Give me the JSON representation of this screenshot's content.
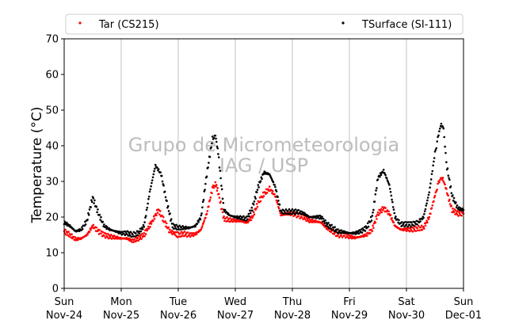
{
  "chart_data": {
    "type": "scatter",
    "title": "",
    "xlabel": "",
    "ylabel": "Temperature (°C)",
    "ylim": [
      0,
      70
    ],
    "yticks": [
      0,
      10,
      20,
      30,
      40,
      50,
      60,
      70
    ],
    "x_unit": "day",
    "xlim": [
      0,
      7
    ],
    "xticks": [
      {
        "day": "Sun",
        "date": "Nov-24"
      },
      {
        "day": "Mon",
        "date": "Nov-25"
      },
      {
        "day": "Tue",
        "date": "Nov-26"
      },
      {
        "day": "Wed",
        "date": "Nov-27"
      },
      {
        "day": "Thu",
        "date": "Nov-28"
      },
      {
        "day": "Fri",
        "date": "Nov-29"
      },
      {
        "day": "Sat",
        "date": "Nov-30"
      },
      {
        "day": "Sun",
        "date": "Dec-01"
      }
    ],
    "grid": "vertical",
    "legend": "top",
    "watermark": [
      "Grupo de Micrometeorologia",
      "IAG / USP"
    ],
    "series": [
      {
        "name": "Tar (CS215)",
        "color": "#ff0000",
        "points": [
          [
            0.0,
            16.0
          ],
          [
            0.1,
            15.0
          ],
          [
            0.2,
            13.8
          ],
          [
            0.3,
            14.0
          ],
          [
            0.4,
            15.0
          ],
          [
            0.5,
            17.5
          ],
          [
            0.6,
            16.0
          ],
          [
            0.7,
            15.0
          ],
          [
            0.8,
            14.5
          ],
          [
            0.9,
            14.3
          ],
          [
            1.0,
            14.0
          ],
          [
            1.1,
            14.0
          ],
          [
            1.2,
            13.3
          ],
          [
            1.3,
            14.0
          ],
          [
            1.4,
            15.0
          ],
          [
            1.55,
            19.0
          ],
          [
            1.65,
            22.0
          ],
          [
            1.75,
            19.0
          ],
          [
            1.85,
            16.0
          ],
          [
            1.95,
            15.3
          ],
          [
            2.0,
            15.0
          ],
          [
            2.1,
            15.3
          ],
          [
            2.2,
            15.0
          ],
          [
            2.3,
            15.2
          ],
          [
            2.4,
            16.5
          ],
          [
            2.5,
            21.0
          ],
          [
            2.6,
            28.0
          ],
          [
            2.65,
            29.5
          ],
          [
            2.7,
            27.0
          ],
          [
            2.8,
            19.5
          ],
          [
            2.9,
            19.2
          ],
          [
            3.0,
            19.0
          ],
          [
            3.1,
            18.8
          ],
          [
            3.2,
            18.5
          ],
          [
            3.3,
            20.0
          ],
          [
            3.4,
            24.0
          ],
          [
            3.5,
            26.5
          ],
          [
            3.6,
            28.0
          ],
          [
            3.7,
            26.0
          ],
          [
            3.8,
            20.5
          ],
          [
            3.9,
            21.0
          ],
          [
            4.0,
            21.0
          ],
          [
            4.1,
            20.5
          ],
          [
            4.2,
            20.0
          ],
          [
            4.3,
            19.0
          ],
          [
            4.4,
            18.8
          ],
          [
            4.5,
            18.5
          ],
          [
            4.6,
            17.0
          ],
          [
            4.7,
            16.0
          ],
          [
            4.8,
            15.0
          ],
          [
            4.9,
            15.0
          ],
          [
            5.0,
            14.5
          ],
          [
            5.1,
            14.2
          ],
          [
            5.2,
            14.5
          ],
          [
            5.3,
            15.0
          ],
          [
            5.4,
            16.5
          ],
          [
            5.5,
            21.0
          ],
          [
            5.6,
            22.5
          ],
          [
            5.7,
            21.0
          ],
          [
            5.8,
            17.5
          ],
          [
            5.9,
            16.5
          ],
          [
            6.0,
            16.5
          ],
          [
            6.1,
            16.5
          ],
          [
            6.2,
            16.8
          ],
          [
            6.3,
            17.0
          ],
          [
            6.4,
            20.0
          ],
          [
            6.5,
            26.0
          ],
          [
            6.55,
            29.0
          ],
          [
            6.6,
            31.0
          ],
          [
            6.65,
            30.5
          ],
          [
            6.7,
            27.5
          ],
          [
            6.8,
            22.0
          ],
          [
            6.9,
            21.0
          ],
          [
            7.0,
            21.0
          ]
        ]
      },
      {
        "name": "TSurface (SI-111)",
        "color": "#000000",
        "points": [
          [
            0.0,
            18.5
          ],
          [
            0.1,
            17.5
          ],
          [
            0.2,
            16.0
          ],
          [
            0.3,
            16.5
          ],
          [
            0.4,
            19.0
          ],
          [
            0.5,
            25.5
          ],
          [
            0.6,
            21.0
          ],
          [
            0.7,
            17.5
          ],
          [
            0.8,
            16.5
          ],
          [
            0.9,
            16.0
          ],
          [
            1.0,
            15.5
          ],
          [
            1.1,
            15.5
          ],
          [
            1.2,
            15.0
          ],
          [
            1.3,
            15.5
          ],
          [
            1.4,
            17.5
          ],
          [
            1.5,
            27.0
          ],
          [
            1.6,
            34.5
          ],
          [
            1.7,
            32.0
          ],
          [
            1.8,
            24.0
          ],
          [
            1.9,
            17.5
          ],
          [
            2.0,
            17.0
          ],
          [
            2.1,
            17.0
          ],
          [
            2.2,
            17.0
          ],
          [
            2.3,
            17.5
          ],
          [
            2.4,
            20.0
          ],
          [
            2.5,
            32.0
          ],
          [
            2.6,
            42.0
          ],
          [
            2.65,
            43.0
          ],
          [
            2.7,
            38.0
          ],
          [
            2.8,
            22.0
          ],
          [
            2.9,
            20.5
          ],
          [
            3.0,
            20.0
          ],
          [
            3.1,
            19.8
          ],
          [
            3.2,
            19.5
          ],
          [
            3.3,
            22.5
          ],
          [
            3.4,
            28.5
          ],
          [
            3.5,
            32.5
          ],
          [
            3.6,
            32.0
          ],
          [
            3.7,
            28.5
          ],
          [
            3.8,
            21.5
          ],
          [
            3.9,
            21.5
          ],
          [
            4.0,
            21.5
          ],
          [
            4.1,
            21.5
          ],
          [
            4.2,
            21.0
          ],
          [
            4.3,
            20.0
          ],
          [
            4.4,
            20.0
          ],
          [
            4.5,
            20.0
          ],
          [
            4.6,
            18.0
          ],
          [
            4.7,
            17.0
          ],
          [
            4.8,
            16.0
          ],
          [
            4.9,
            15.8
          ],
          [
            5.0,
            15.5
          ],
          [
            5.1,
            15.5
          ],
          [
            5.2,
            16.0
          ],
          [
            5.3,
            17.0
          ],
          [
            5.4,
            20.0
          ],
          [
            5.5,
            31.0
          ],
          [
            5.6,
            33.0
          ],
          [
            5.7,
            29.0
          ],
          [
            5.8,
            20.0
          ],
          [
            5.9,
            18.0
          ],
          [
            6.0,
            18.0
          ],
          [
            6.1,
            18.0
          ],
          [
            6.2,
            18.5
          ],
          [
            6.3,
            20.0
          ],
          [
            6.4,
            27.0
          ],
          [
            6.5,
            38.0
          ],
          [
            6.55,
            42.0
          ],
          [
            6.6,
            46.0
          ],
          [
            6.65,
            45.0
          ],
          [
            6.7,
            35.0
          ],
          [
            6.8,
            26.0
          ],
          [
            6.9,
            22.5
          ],
          [
            7.0,
            22.0
          ]
        ]
      }
    ]
  }
}
